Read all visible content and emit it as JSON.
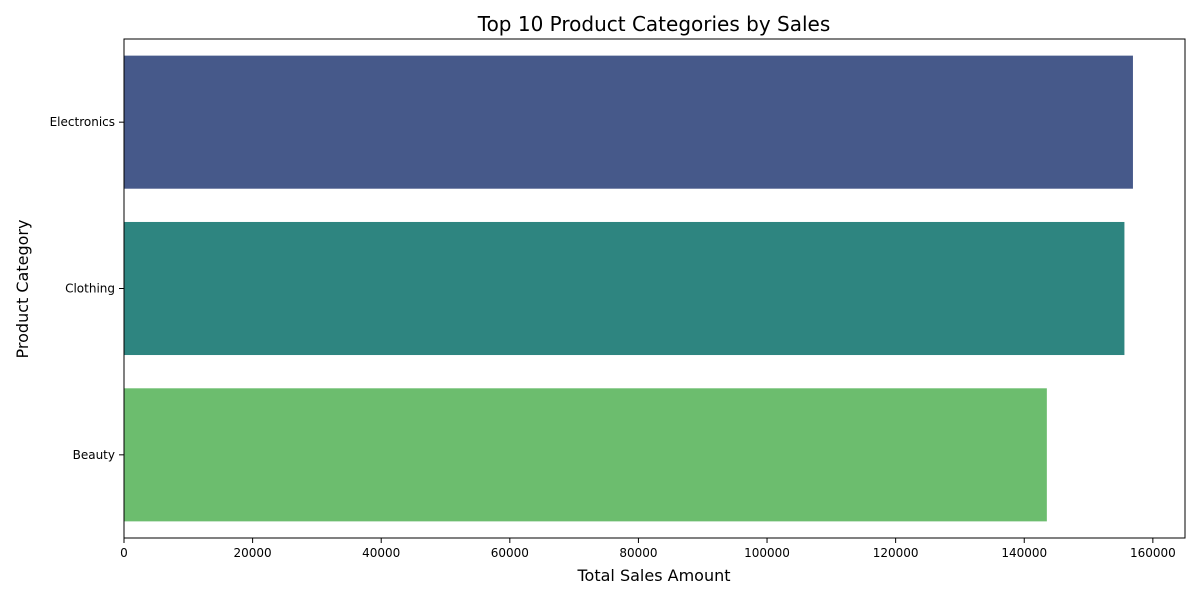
{
  "chart_data": {
    "type": "bar",
    "orientation": "horizontal",
    "title": "Top 10 Product Categories by Sales",
    "xlabel": "Total Sales Amount",
    "ylabel": "Product Category",
    "categories": [
      "Electronics",
      "Clothing",
      "Beauty"
    ],
    "values": [
      156905,
      155580,
      143515
    ],
    "colors": [
      "#46598a",
      "#2e8580",
      "#6cbd6e"
    ],
    "xlim": [
      0,
      165000
    ],
    "xticks": [
      0,
      20000,
      40000,
      60000,
      80000,
      100000,
      120000,
      140000,
      160000
    ],
    "grid": false,
    "legend": "none"
  }
}
